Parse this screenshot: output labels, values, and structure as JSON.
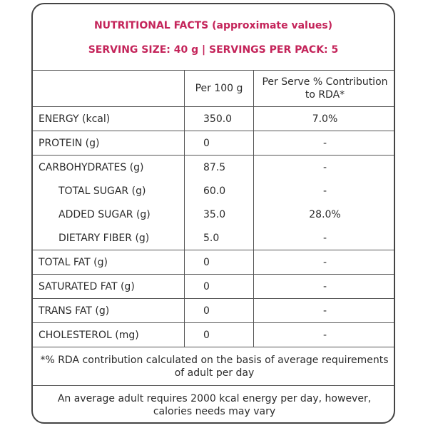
{
  "header": {
    "title": "NUTRITIONAL FACTS (approximate values)",
    "serving": "SERVING SIZE: 40 g | SERVINGS PER PACK: 5"
  },
  "table": {
    "columns": [
      "Per 100 g",
      "Per Serve % Contribution to RDA*"
    ],
    "rows": [
      [
        "ENERGY (kcal)",
        "350.0",
        "7.0%"
      ],
      [
        "PROTEIN (g)",
        "0",
        "-"
      ],
      [
        "CARBOHYDRATES (g)",
        "87.5",
        "-"
      ],
      [
        "TOTAL  SUGAR (g)",
        "60.0",
        "-"
      ],
      [
        "ADDED SUGAR (g)",
        "35.0",
        "28.0%"
      ],
      [
        "DIETARY FIBER (g)",
        "5.0",
        "-"
      ],
      [
        "TOTAL FAT (g)",
        "0",
        "-"
      ],
      [
        "SATURATED FAT (g)",
        "0",
        "-"
      ],
      [
        "TRANS FAT (g)",
        "0",
        "-"
      ],
      [
        "CHOLESTEROL (mg)",
        "0",
        "-"
      ]
    ],
    "subrows": [
      3,
      4,
      5
    ],
    "notes": [
      "*% RDA contribution calculated on the basis of average requirements of adult per day",
      "An average adult requires 2000 kcal energy per day, however, calories needs may vary"
    ]
  }
}
